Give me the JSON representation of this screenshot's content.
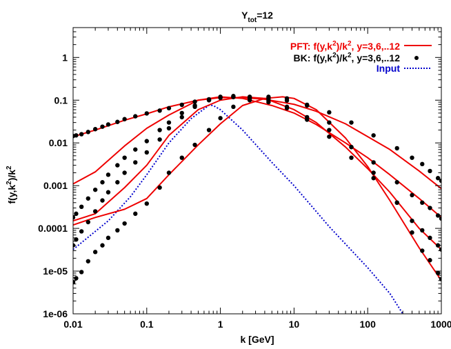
{
  "chart_data": {
    "type": "line",
    "title_main": "Y",
    "title_sub": "tot",
    "title_rest": "=12",
    "xlabel": "k [GeV]",
    "ylabel_parts": [
      "f(y,k",
      "2",
      ")/k",
      "2"
    ],
    "x_scale": "log",
    "y_scale": "log",
    "xlim": [
      0.01,
      1000
    ],
    "ylim": [
      1e-06,
      5
    ],
    "grid": false,
    "legend_position": "top-right",
    "x_ticks": [
      {
        "value": 0.01,
        "label": "0.01"
      },
      {
        "value": 0.1,
        "label": "0.1"
      },
      {
        "value": 1,
        "label": "1"
      },
      {
        "value": 10,
        "label": "10"
      },
      {
        "value": 100,
        "label": "100"
      },
      {
        "value": 1000,
        "label": "1000"
      }
    ],
    "y_ticks": [
      {
        "value": 1e-06,
        "label": "1e-06"
      },
      {
        "value": 1e-05,
        "label": "1e-05"
      },
      {
        "value": 0.0001,
        "label": "0.0001"
      },
      {
        "value": 0.001,
        "label": "0.001"
      },
      {
        "value": 0.01,
        "label": "0.01"
      },
      {
        "value": 0.1,
        "label": "0.1"
      },
      {
        "value": 1,
        "label": "1"
      }
    ],
    "legend": [
      {
        "label_parts": [
          "PFT: f(y,k",
          "2",
          ")/k",
          "2",
          ", y=3,6,..12"
        ],
        "color": "#ee0000",
        "style": "line"
      },
      {
        "label_parts": [
          "BK: f(y,k",
          "2",
          ")/k",
          "2",
          ", y=3,6,..12"
        ],
        "color": "#000000",
        "style": "points"
      },
      {
        "label_parts": [
          "Input"
        ],
        "color": "#0000cc",
        "style": "dotted"
      }
    ],
    "colors": {
      "pft": "#ee0000",
      "bk": "#000000",
      "input": "#0000cc"
    },
    "series": [
      {
        "name": "Input",
        "style": "dotted",
        "points": [
          [
            0.01,
            3.2e-05
          ],
          [
            0.03,
            0.00015
          ],
          [
            0.06,
            0.00055
          ],
          [
            0.1,
            0.0018
          ],
          [
            0.2,
            0.01
          ],
          [
            0.4,
            0.037
          ],
          [
            0.7,
            0.076
          ],
          [
            0.8,
            0.075
          ],
          [
            1.0,
            0.06
          ],
          [
            2.0,
            0.02
          ],
          [
            5.0,
            0.0035
          ],
          [
            10,
            0.001
          ],
          [
            30,
            0.00011
          ],
          [
            100,
            1.2e-05
          ],
          [
            200,
            3e-06
          ],
          [
            300,
            1e-06
          ]
        ]
      },
      {
        "name": "PFT y=3",
        "style": "line",
        "points": [
          [
            0.01,
            0.00012
          ],
          [
            0.02,
            0.00018
          ],
          [
            0.05,
            0.00028
          ],
          [
            0.1,
            0.0005
          ],
          [
            0.2,
            0.0018
          ],
          [
            0.5,
            0.009
          ],
          [
            1.0,
            0.028
          ],
          [
            2.0,
            0.075
          ],
          [
            4.0,
            0.11
          ],
          [
            7.0,
            0.12
          ],
          [
            10,
            0.11
          ],
          [
            20,
            0.06
          ],
          [
            50,
            0.013
          ],
          [
            100,
            0.0028
          ],
          [
            200,
            0.00045
          ],
          [
            500,
            3.5e-05
          ],
          [
            1000,
            6e-06
          ]
        ]
      },
      {
        "name": "PFT y=6",
        "style": "line",
        "points": [
          [
            0.01,
            0.00015
          ],
          [
            0.02,
            0.00022
          ],
          [
            0.05,
            0.0009
          ],
          [
            0.1,
            0.003
          ],
          [
            0.2,
            0.015
          ],
          [
            0.5,
            0.06
          ],
          [
            1.0,
            0.1
          ],
          [
            2.0,
            0.12
          ],
          [
            4.0,
            0.11
          ],
          [
            10,
            0.06
          ],
          [
            20,
            0.03
          ],
          [
            50,
            0.008
          ],
          [
            100,
            0.0025
          ],
          [
            200,
            0.0007
          ],
          [
            500,
            0.0001
          ],
          [
            1000,
            3.2e-05
          ]
        ]
      },
      {
        "name": "PFT y=9",
        "style": "line",
        "points": [
          [
            0.01,
            0.0011
          ],
          [
            0.02,
            0.0021
          ],
          [
            0.05,
            0.0085
          ],
          [
            0.1,
            0.022
          ],
          [
            0.2,
            0.045
          ],
          [
            0.5,
            0.1
          ],
          [
            1.0,
            0.12
          ],
          [
            2.0,
            0.11
          ],
          [
            5.0,
            0.075
          ],
          [
            10,
            0.05
          ],
          [
            20,
            0.027
          ],
          [
            50,
            0.01
          ],
          [
            100,
            0.0045
          ],
          [
            200,
            0.0018
          ],
          [
            500,
            0.0005
          ],
          [
            1000,
            0.00018
          ]
        ]
      },
      {
        "name": "PFT y=12",
        "style": "line",
        "points": [
          [
            0.01,
            0.014
          ],
          [
            0.02,
            0.02
          ],
          [
            0.05,
            0.034
          ],
          [
            0.1,
            0.048
          ],
          [
            0.2,
            0.07
          ],
          [
            0.5,
            0.1
          ],
          [
            1.0,
            0.115
          ],
          [
            2.0,
            0.115
          ],
          [
            4.0,
            0.105
          ],
          [
            10,
            0.08
          ],
          [
            20,
            0.055
          ],
          [
            50,
            0.028
          ],
          [
            100,
            0.014
          ],
          [
            200,
            0.007
          ],
          [
            500,
            0.0022
          ],
          [
            1000,
            0.00085
          ]
        ]
      },
      {
        "name": "BK y=3",
        "style": "points",
        "points": [
          [
            0.01,
            5.5e-06
          ],
          [
            0.011,
            6.8e-06
          ],
          [
            0.013,
            9.5e-06
          ],
          [
            0.016,
            1.7e-05
          ],
          [
            0.02,
            2.8e-05
          ],
          [
            0.025,
            4e-05
          ],
          [
            0.03,
            6e-05
          ],
          [
            0.04,
            9e-05
          ],
          [
            0.05,
            0.00013
          ],
          [
            0.07,
            0.00022
          ],
          [
            0.1,
            0.00038
          ],
          [
            0.15,
            0.0009
          ],
          [
            0.2,
            0.002
          ],
          [
            0.3,
            0.0045
          ],
          [
            0.45,
            0.009
          ],
          [
            0.7,
            0.02
          ],
          [
            1.0,
            0.038
          ],
          [
            1.5,
            0.07
          ],
          [
            2.5,
            0.1
          ],
          [
            4.5,
            0.12
          ],
          [
            8,
            0.11
          ],
          [
            15,
            0.075
          ],
          [
            30,
            0.03
          ],
          [
            60,
            0.008
          ],
          [
            120,
            0.002
          ],
          [
            250,
            0.0004
          ],
          [
            400,
            8e-05
          ],
          [
            550,
            3e-05
          ],
          [
            700,
            1.8e-05
          ],
          [
            900,
            9e-06
          ],
          [
            1000,
            6.5e-06
          ]
        ]
      },
      {
        "name": "BK y=6",
        "style": "points",
        "points": [
          [
            0.01,
            4e-05
          ],
          [
            0.011,
            5.5e-05
          ],
          [
            0.013,
            8.5e-05
          ],
          [
            0.016,
            0.00014
          ],
          [
            0.02,
            0.00025
          ],
          [
            0.025,
            0.00045
          ],
          [
            0.03,
            0.0007
          ],
          [
            0.04,
            0.0012
          ],
          [
            0.05,
            0.002
          ],
          [
            0.07,
            0.0035
          ],
          [
            0.1,
            0.006
          ],
          [
            0.15,
            0.012
          ],
          [
            0.2,
            0.022
          ],
          [
            0.3,
            0.04
          ],
          [
            0.45,
            0.07
          ],
          [
            0.7,
            0.1
          ],
          [
            1.0,
            0.12
          ],
          [
            1.5,
            0.125
          ],
          [
            2.5,
            0.12
          ],
          [
            4.5,
            0.1
          ],
          [
            8,
            0.07
          ],
          [
            15,
            0.035
          ],
          [
            30,
            0.014
          ],
          [
            60,
            0.0045
          ],
          [
            120,
            0.0015
          ],
          [
            250,
            0.0004
          ],
          [
            400,
            0.00015
          ],
          [
            550,
            9e-05
          ],
          [
            700,
            6e-05
          ],
          [
            900,
            4e-05
          ],
          [
            1000,
            3.2e-05
          ]
        ]
      },
      {
        "name": "BK y=9",
        "style": "points",
        "points": [
          [
            0.01,
            0.00018
          ],
          [
            0.011,
            0.00022
          ],
          [
            0.013,
            0.00032
          ],
          [
            0.016,
            0.0005
          ],
          [
            0.02,
            0.0008
          ],
          [
            0.025,
            0.0012
          ],
          [
            0.03,
            0.0018
          ],
          [
            0.04,
            0.003
          ],
          [
            0.05,
            0.0045
          ],
          [
            0.07,
            0.007
          ],
          [
            0.1,
            0.011
          ],
          [
            0.15,
            0.02
          ],
          [
            0.2,
            0.03
          ],
          [
            0.3,
            0.05
          ],
          [
            0.45,
            0.075
          ],
          [
            0.7,
            0.1
          ],
          [
            1.0,
            0.115
          ],
          [
            1.5,
            0.12
          ],
          [
            2.5,
            0.11
          ],
          [
            4.5,
            0.09
          ],
          [
            8,
            0.065
          ],
          [
            15,
            0.04
          ],
          [
            30,
            0.02
          ],
          [
            60,
            0.008
          ],
          [
            120,
            0.0035
          ],
          [
            250,
            0.0012
          ],
          [
            400,
            0.0006
          ],
          [
            550,
            0.0004
          ],
          [
            700,
            0.0003
          ],
          [
            900,
            0.0002
          ],
          [
            1000,
            0.00017
          ]
        ]
      },
      {
        "name": "BK y=12",
        "style": "points",
        "points": [
          [
            0.01,
            0.0145
          ],
          [
            0.011,
            0.015
          ],
          [
            0.013,
            0.016
          ],
          [
            0.016,
            0.018
          ],
          [
            0.02,
            0.021
          ],
          [
            0.025,
            0.024
          ],
          [
            0.03,
            0.027
          ],
          [
            0.04,
            0.031
          ],
          [
            0.05,
            0.036
          ],
          [
            0.07,
            0.042
          ],
          [
            0.1,
            0.049
          ],
          [
            0.15,
            0.057
          ],
          [
            0.2,
            0.065
          ],
          [
            0.3,
            0.078
          ],
          [
            0.45,
            0.092
          ],
          [
            0.7,
            0.105
          ],
          [
            1.0,
            0.113
          ],
          [
            1.5,
            0.118
          ],
          [
            2.5,
            0.117
          ],
          [
            4.5,
            0.11
          ],
          [
            8,
            0.098
          ],
          [
            15,
            0.078
          ],
          [
            30,
            0.052
          ],
          [
            60,
            0.03
          ],
          [
            120,
            0.015
          ],
          [
            250,
            0.0075
          ],
          [
            400,
            0.0045
          ],
          [
            550,
            0.0032
          ],
          [
            700,
            0.0022
          ],
          [
            900,
            0.0015
          ],
          [
            1000,
            0.0013
          ]
        ]
      }
    ]
  }
}
